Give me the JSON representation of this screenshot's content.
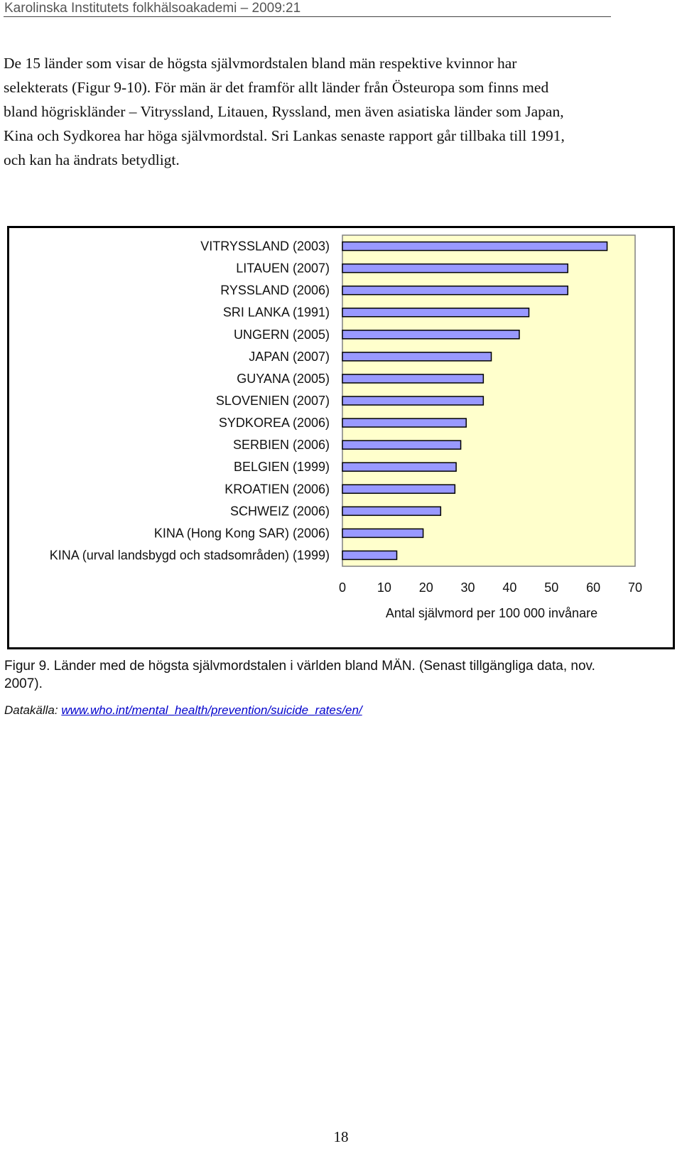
{
  "header": {
    "text": "Karolinska Institutets folkhälsoakademi – 2009:21"
  },
  "paragraph": {
    "lines": [
      "De 15 länder som visar de högsta självmordstalen bland män respektive kvinnor har",
      "selekterats (Figur 9-10). För män är det framför allt länder från Östeuropa som finns med",
      "bland högrisk­länder – Vitryssland, Litauen, Ryssland, men även asiatiska länder som Japan,",
      "Kina och Sydkorea har höga självmordstal. Sri Lankas senaste rapport går tillbaka till 1991,",
      "och kan ha ändrats betydligt."
    ]
  },
  "chart_data": {
    "type": "bar",
    "orientation": "horizontal",
    "categories": [
      "VITRYSSLAND (2003)",
      "LITAUEN (2007)",
      "RYSSLAND (2006)",
      "SRI LANKA (1991)",
      "UNGERN (2005)",
      "JAPAN (2007)",
      "GUYANA (2005)",
      "SLOVENIEN (2007)",
      "SYDKOREA (2006)",
      "SERBIEN (2006)",
      "BELGIEN (1999)",
      "KROATIEN (2006)",
      "SCHWEIZ (2006)",
      "KINA (Hong Kong SAR) (2006)",
      "KINA (urval landsbygd och stadsområden) (1999)"
    ],
    "values": [
      63.3,
      53.9,
      53.9,
      44.6,
      42.3,
      35.6,
      33.7,
      33.7,
      29.6,
      28.3,
      27.2,
      26.9,
      23.5,
      19.3,
      13.0
    ],
    "xlabel": "Antal självmord per 100 000 invånare",
    "ylabel": "",
    "xlim": [
      0,
      70
    ],
    "xticks": [
      "0",
      "10",
      "20",
      "30",
      "40",
      "50",
      "60",
      "70"
    ],
    "grid": false,
    "legend": "none",
    "colors": {
      "bar_fill": "#9999ff",
      "bar_stroke": "#000000",
      "plot_bg": "#ffffcc",
      "plot_border": "#808080"
    }
  },
  "caption": {
    "lines": [
      "Figur 9. Länder med de högsta självmordstalen i världen bland MÄN. (Senast tillgängliga data, nov.",
      "2007)."
    ]
  },
  "source": {
    "label": "Datakälla: ",
    "link_text": "www.who.int/mental_health/prevention/suicide_rates/en/"
  },
  "page_number": "18"
}
